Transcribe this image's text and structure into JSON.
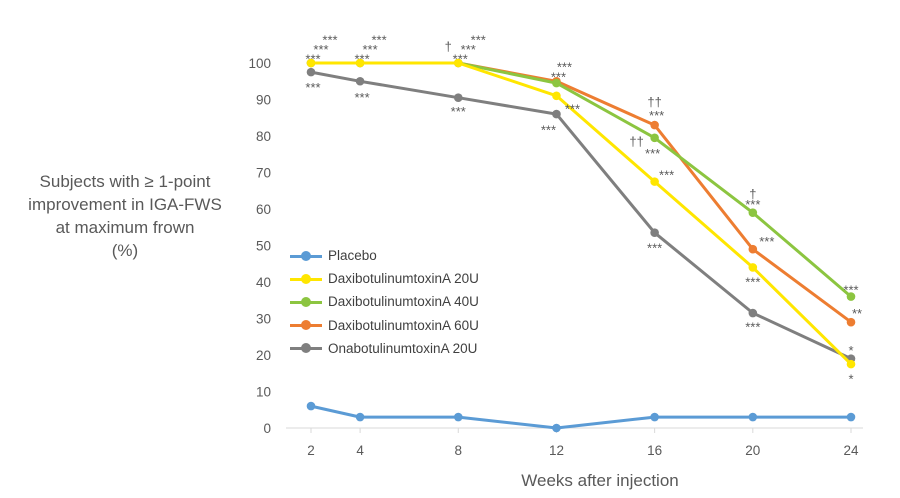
{
  "chart_data": {
    "type": "line",
    "xlabel": "Weeks after injection",
    "ylabel_lines": [
      "Subjects with ≥ 1-point",
      "improvement in IGA-FWS",
      "at maximum frown",
      "(%)"
    ],
    "x": [
      2,
      4,
      8,
      12,
      16,
      20,
      24
    ],
    "xticks": [
      "2",
      "4",
      "8",
      "12",
      "16",
      "20",
      "24"
    ],
    "yticks": [
      "0",
      "10",
      "20",
      "30",
      "40",
      "50",
      "60",
      "70",
      "80",
      "90",
      "100"
    ],
    "ylim": [
      0,
      100
    ],
    "grid": false,
    "legend_position": "left-center",
    "series": [
      {
        "name": "Placebo",
        "color": "#5B9BD5",
        "values": [
          6,
          3,
          3,
          0,
          3,
          3,
          3
        ]
      },
      {
        "name": "DaxibotulinumtoxinA 20U",
        "color": "#FFE600",
        "values": [
          100,
          100,
          100,
          91,
          67.5,
          44,
          17.5
        ]
      },
      {
        "name": "DaxibotulinumtoxinA 40U",
        "color": "#8CC540",
        "values": [
          100,
          100,
          100,
          94.5,
          79.5,
          59,
          36
        ]
      },
      {
        "name": "DaxibotulinumtoxinA 60U",
        "color": "#ED7D31",
        "values": [
          100,
          100,
          100,
          95,
          83,
          49,
          29
        ]
      },
      {
        "name": "OnabotulinumtoxinA 20U",
        "color": "#7F7F7F",
        "values": [
          97.5,
          95,
          90.5,
          86,
          53.5,
          31.5,
          19
        ]
      }
    ],
    "annotations": [
      {
        "text": "***",
        "x": 2,
        "y": 106.5,
        "dx": 19
      },
      {
        "text": "***",
        "x": 2,
        "y": 103.8,
        "dx": 10
      },
      {
        "text": "***",
        "x": 2,
        "y": 101.2,
        "dx": 2
      },
      {
        "text": "***",
        "x": 2,
        "y": 93.4,
        "dx": 2
      },
      {
        "text": "***",
        "x": 4,
        "y": 106.5,
        "dx": 19
      },
      {
        "text": "***",
        "x": 4,
        "y": 103.8,
        "dx": 10
      },
      {
        "text": "***",
        "x": 4,
        "y": 101.2,
        "dx": 2
      },
      {
        "text": "***",
        "x": 4,
        "y": 90.7,
        "dx": 2
      },
      {
        "text": "†",
        "x": 8,
        "y": 104.6,
        "dx": -10
      },
      {
        "text": "***",
        "x": 8,
        "y": 106.5,
        "dx": 20
      },
      {
        "text": "***",
        "x": 8,
        "y": 103.8,
        "dx": 10
      },
      {
        "text": "***",
        "x": 8,
        "y": 101.2,
        "dx": 2
      },
      {
        "text": "***",
        "x": 8,
        "y": 86.8,
        "dx": 0
      },
      {
        "text": "***",
        "x": 12,
        "y": 99.1,
        "dx": 8
      },
      {
        "text": "***",
        "x": 12,
        "y": 96.3,
        "dx": 2
      },
      {
        "text": "***",
        "x": 12,
        "y": 87.5,
        "dx": 16
      },
      {
        "text": "***",
        "x": 12,
        "y": 81.8,
        "dx": -8
      },
      {
        "text": "††",
        "x": 16,
        "y": 89.5,
        "dx": 0
      },
      {
        "text": "***",
        "x": 16,
        "y": 85.7,
        "dx": 2
      },
      {
        "text": "††",
        "x": 16,
        "y": 78.6,
        "dx": -18
      },
      {
        "text": "***",
        "x": 16,
        "y": 75.3,
        "dx": -2
      },
      {
        "text": "***",
        "x": 16,
        "y": 69.4,
        "dx": 12
      },
      {
        "text": "***",
        "x": 16,
        "y": 49.4,
        "dx": 0
      },
      {
        "text": "†",
        "x": 20,
        "y": 64.2,
        "dx": 0
      },
      {
        "text": "***",
        "x": 20,
        "y": 61.4,
        "dx": 0
      },
      {
        "text": "***",
        "x": 20,
        "y": 51.3,
        "dx": 14
      },
      {
        "text": "***",
        "x": 20,
        "y": 40.2,
        "dx": 0
      },
      {
        "text": "***",
        "x": 20,
        "y": 27.8,
        "dx": 0
      },
      {
        "text": "***",
        "x": 24,
        "y": 37.9,
        "dx": 0
      },
      {
        "text": "**",
        "x": 24,
        "y": 31.5,
        "dx": 6
      },
      {
        "text": "*",
        "x": 24,
        "y": 21.4,
        "dx": 0
      },
      {
        "text": "*",
        "x": 24,
        "y": 13.6,
        "dx": 0
      }
    ]
  }
}
